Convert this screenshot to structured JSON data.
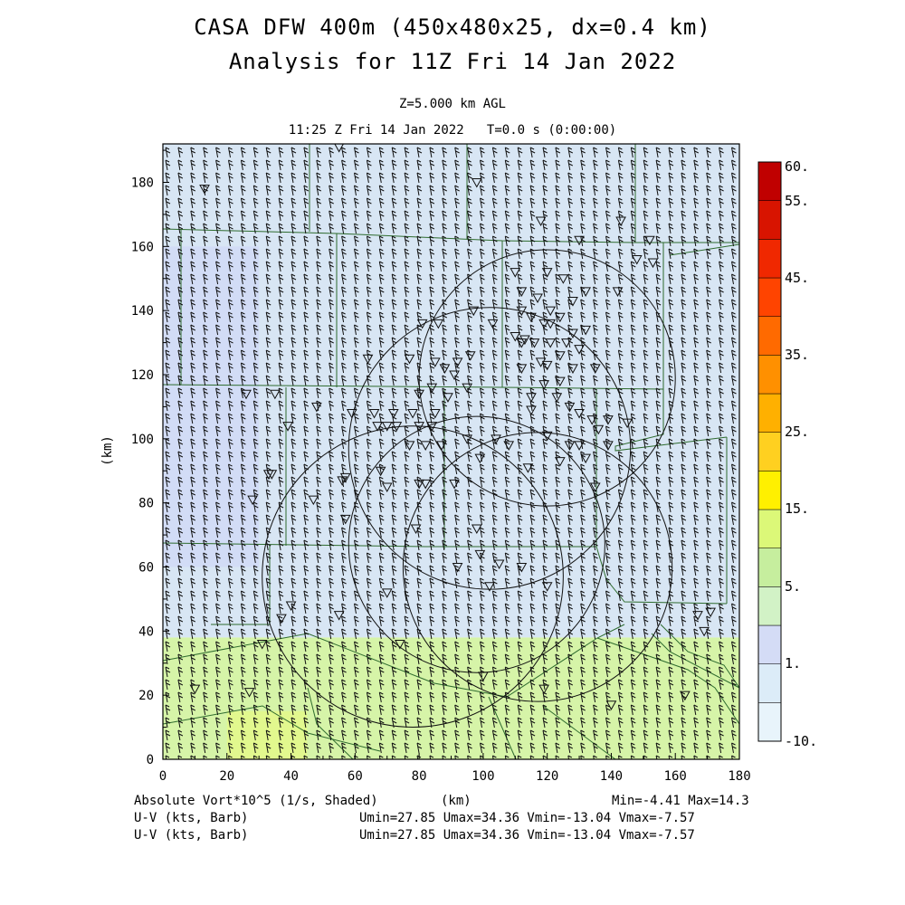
{
  "header": {
    "title1": "CASA DFW 400m (450x480x25, dx=0.4 km)",
    "title2": "Analysis for 11Z Fri 14 Jan 2022",
    "zlevel": "Z=5.000 km AGL",
    "timeline": "11:25 Z Fri 14 Jan 2022   T=0.0 s (0:00:00)"
  },
  "footer": {
    "field_label": "Absolute Vort*10^5 (1/s, Shaded)",
    "xunit": "(km)",
    "minmax": "Min=-4.41 Max=14.3",
    "uv_label_1": "U-V (kts, Barb)",
    "uv_label_2": "U-V (kts, Barb)",
    "uv_stats_1": "Umin=27.85 Umax=34.36 Vmin=-13.04 Vmax=-7.57",
    "uv_stats_2": "Umin=27.85 Umax=34.36 Vmin=-13.04 Vmax=-7.57"
  },
  "chart_data": {
    "type": "heatmap",
    "title": "CASA DFW 400m (450x480x25, dx=0.4 km)",
    "subtitle": "Analysis for 11Z Fri 14 Jan 2022",
    "xlabel": "(km)",
    "ylabel": "(km)",
    "xlim": [
      0,
      180
    ],
    "ylim": [
      0,
      192
    ],
    "xticks": [
      0,
      20,
      40,
      60,
      80,
      100,
      120,
      140,
      160,
      180
    ],
    "yticks": [
      0,
      20,
      40,
      60,
      80,
      100,
      120,
      140,
      160,
      180
    ],
    "field": "Absolute Vort*10^5 (1/s, Shaded)",
    "field_min": -4.41,
    "field_max": 14.3,
    "colorbar": {
      "labels": [
        "-10.",
        "1.",
        "5.",
        "15.",
        "25.",
        "35.",
        "45.",
        "55.",
        "60."
      ],
      "colors": [
        "#e8f4fb",
        "#dcecf8",
        "#d4dcf6",
        "#d2f2c6",
        "#c6ee9e",
        "#dcf878",
        "#fff000",
        "#ffd020",
        "#ffb000",
        "#ff9000",
        "#ff6a00",
        "#ff4400",
        "#f02800",
        "#d81400",
        "#c00000"
      ]
    },
    "regions": [
      {
        "name": "background",
        "x": [
          0,
          180
        ],
        "y": [
          38,
          192
        ],
        "color": "#d8e6f4"
      },
      {
        "name": "low-vorticity-patch",
        "x": [
          0,
          30
        ],
        "y": [
          60,
          160
        ],
        "color": "#d2dcf6"
      },
      {
        "name": "south-band",
        "x": [
          0,
          180
        ],
        "y": [
          0,
          38
        ],
        "color": "#d6f4a8"
      },
      {
        "name": "southwest-max",
        "x": [
          20,
          45
        ],
        "y": [
          0,
          15
        ],
        "color": "#e2f88e"
      }
    ],
    "range_rings": [
      {
        "center": [
          78,
          57
        ],
        "radius": 47
      },
      {
        "center": [
          117,
          60
        ],
        "radius": 42
      },
      {
        "center": [
          98,
          67
        ],
        "radius": 40
      },
      {
        "center": [
          102,
          97
        ],
        "radius": 44
      },
      {
        "center": [
          120,
          119
        ],
        "radius": 40
      }
    ],
    "wind_barbs": {
      "u_min": 27.85,
      "u_max": 34.36,
      "v_min": -13.04,
      "v_max": -7.57,
      "units": "kts"
    }
  }
}
